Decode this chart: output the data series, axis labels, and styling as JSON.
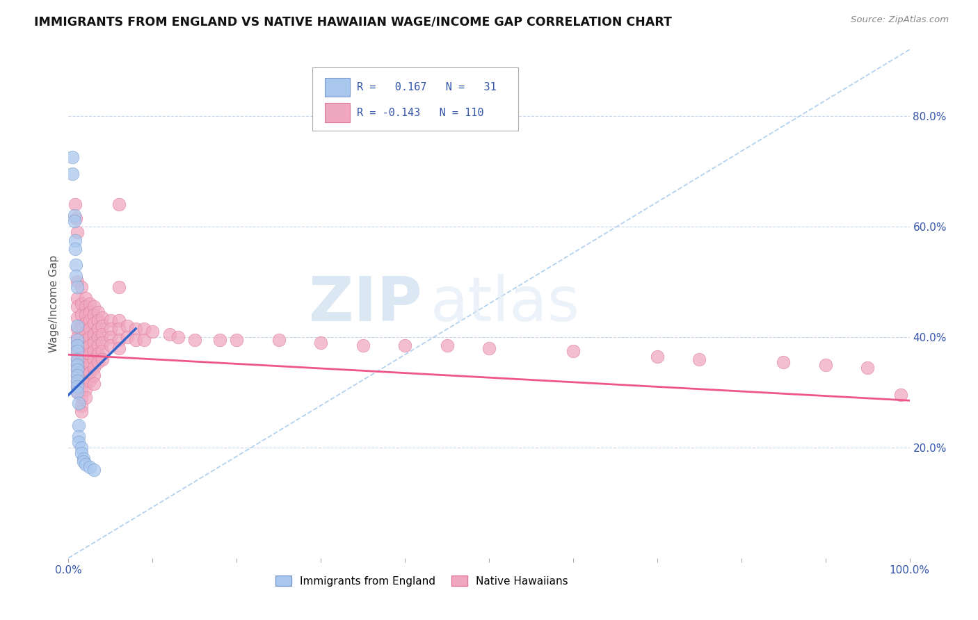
{
  "title": "IMMIGRANTS FROM ENGLAND VS NATIVE HAWAIIAN WAGE/INCOME GAP CORRELATION CHART",
  "source": "Source: ZipAtlas.com",
  "ylabel": "Wage/Income Gap",
  "xlim": [
    0,
    1.0
  ],
  "ylim": [
    0,
    0.92
  ],
  "england_color": "#aac8ee",
  "england_edge": "#7799cc",
  "hawaii_color": "#f0a8c0",
  "hawaii_edge": "#dd7799",
  "england_line_color": "#3366cc",
  "hawaii_line_color": "#ee5588",
  "dashed_line_color": "#aaccee",
  "watermark_color": "#d5e8f5",
  "england_points": [
    [
      0.005,
      0.725
    ],
    [
      0.005,
      0.695
    ],
    [
      0.007,
      0.62
    ],
    [
      0.007,
      0.61
    ],
    [
      0.008,
      0.575
    ],
    [
      0.008,
      0.56
    ],
    [
      0.009,
      0.53
    ],
    [
      0.009,
      0.51
    ],
    [
      0.01,
      0.49
    ],
    [
      0.01,
      0.42
    ],
    [
      0.01,
      0.395
    ],
    [
      0.01,
      0.385
    ],
    [
      0.01,
      0.375
    ],
    [
      0.01,
      0.36
    ],
    [
      0.01,
      0.35
    ],
    [
      0.01,
      0.34
    ],
    [
      0.01,
      0.33
    ],
    [
      0.01,
      0.32
    ],
    [
      0.01,
      0.31
    ],
    [
      0.01,
      0.3
    ],
    [
      0.012,
      0.28
    ],
    [
      0.012,
      0.24
    ],
    [
      0.012,
      0.22
    ],
    [
      0.012,
      0.21
    ],
    [
      0.015,
      0.2
    ],
    [
      0.015,
      0.19
    ],
    [
      0.018,
      0.18
    ],
    [
      0.018,
      0.175
    ],
    [
      0.02,
      0.17
    ],
    [
      0.025,
      0.165
    ],
    [
      0.03,
      0.16
    ]
  ],
  "hawaii_points": [
    [
      0.008,
      0.64
    ],
    [
      0.009,
      0.615
    ],
    [
      0.01,
      0.59
    ],
    [
      0.01,
      0.5
    ],
    [
      0.01,
      0.47
    ],
    [
      0.01,
      0.455
    ],
    [
      0.01,
      0.435
    ],
    [
      0.01,
      0.415
    ],
    [
      0.01,
      0.4
    ],
    [
      0.01,
      0.39
    ],
    [
      0.01,
      0.38
    ],
    [
      0.01,
      0.37
    ],
    [
      0.01,
      0.36
    ],
    [
      0.01,
      0.35
    ],
    [
      0.01,
      0.34
    ],
    [
      0.01,
      0.33
    ],
    [
      0.01,
      0.32
    ],
    [
      0.01,
      0.31
    ],
    [
      0.01,
      0.3
    ],
    [
      0.015,
      0.49
    ],
    [
      0.015,
      0.46
    ],
    [
      0.015,
      0.44
    ],
    [
      0.015,
      0.42
    ],
    [
      0.015,
      0.4
    ],
    [
      0.015,
      0.38
    ],
    [
      0.015,
      0.36
    ],
    [
      0.015,
      0.34
    ],
    [
      0.015,
      0.32
    ],
    [
      0.015,
      0.305
    ],
    [
      0.015,
      0.29
    ],
    [
      0.015,
      0.275
    ],
    [
      0.015,
      0.265
    ],
    [
      0.02,
      0.47
    ],
    [
      0.02,
      0.455
    ],
    [
      0.02,
      0.44
    ],
    [
      0.02,
      0.425
    ],
    [
      0.02,
      0.41
    ],
    [
      0.02,
      0.395
    ],
    [
      0.02,
      0.38
    ],
    [
      0.02,
      0.365
    ],
    [
      0.02,
      0.35
    ],
    [
      0.02,
      0.335
    ],
    [
      0.02,
      0.32
    ],
    [
      0.02,
      0.305
    ],
    [
      0.02,
      0.29
    ],
    [
      0.025,
      0.46
    ],
    [
      0.025,
      0.445
    ],
    [
      0.025,
      0.43
    ],
    [
      0.025,
      0.415
    ],
    [
      0.025,
      0.4
    ],
    [
      0.025,
      0.385
    ],
    [
      0.025,
      0.37
    ],
    [
      0.025,
      0.35
    ],
    [
      0.025,
      0.335
    ],
    [
      0.025,
      0.32
    ],
    [
      0.03,
      0.455
    ],
    [
      0.03,
      0.44
    ],
    [
      0.03,
      0.425
    ],
    [
      0.03,
      0.405
    ],
    [
      0.03,
      0.39
    ],
    [
      0.03,
      0.375
    ],
    [
      0.03,
      0.36
    ],
    [
      0.03,
      0.345
    ],
    [
      0.03,
      0.33
    ],
    [
      0.03,
      0.315
    ],
    [
      0.035,
      0.445
    ],
    [
      0.035,
      0.43
    ],
    [
      0.035,
      0.415
    ],
    [
      0.035,
      0.4
    ],
    [
      0.035,
      0.385
    ],
    [
      0.035,
      0.37
    ],
    [
      0.035,
      0.355
    ],
    [
      0.04,
      0.435
    ],
    [
      0.04,
      0.42
    ],
    [
      0.04,
      0.405
    ],
    [
      0.04,
      0.39
    ],
    [
      0.04,
      0.375
    ],
    [
      0.04,
      0.36
    ],
    [
      0.05,
      0.43
    ],
    [
      0.05,
      0.415
    ],
    [
      0.05,
      0.4
    ],
    [
      0.05,
      0.385
    ],
    [
      0.06,
      0.64
    ],
    [
      0.06,
      0.49
    ],
    [
      0.06,
      0.43
    ],
    [
      0.06,
      0.415
    ],
    [
      0.06,
      0.395
    ],
    [
      0.06,
      0.38
    ],
    [
      0.07,
      0.42
    ],
    [
      0.07,
      0.4
    ],
    [
      0.08,
      0.415
    ],
    [
      0.08,
      0.395
    ],
    [
      0.09,
      0.415
    ],
    [
      0.09,
      0.395
    ],
    [
      0.1,
      0.41
    ],
    [
      0.12,
      0.405
    ],
    [
      0.13,
      0.4
    ],
    [
      0.15,
      0.395
    ],
    [
      0.18,
      0.395
    ],
    [
      0.2,
      0.395
    ],
    [
      0.25,
      0.395
    ],
    [
      0.3,
      0.39
    ],
    [
      0.35,
      0.385
    ],
    [
      0.4,
      0.385
    ],
    [
      0.45,
      0.385
    ],
    [
      0.5,
      0.38
    ],
    [
      0.6,
      0.375
    ],
    [
      0.7,
      0.365
    ],
    [
      0.75,
      0.36
    ],
    [
      0.85,
      0.355
    ],
    [
      0.9,
      0.35
    ],
    [
      0.95,
      0.345
    ],
    [
      0.99,
      0.295
    ]
  ]
}
